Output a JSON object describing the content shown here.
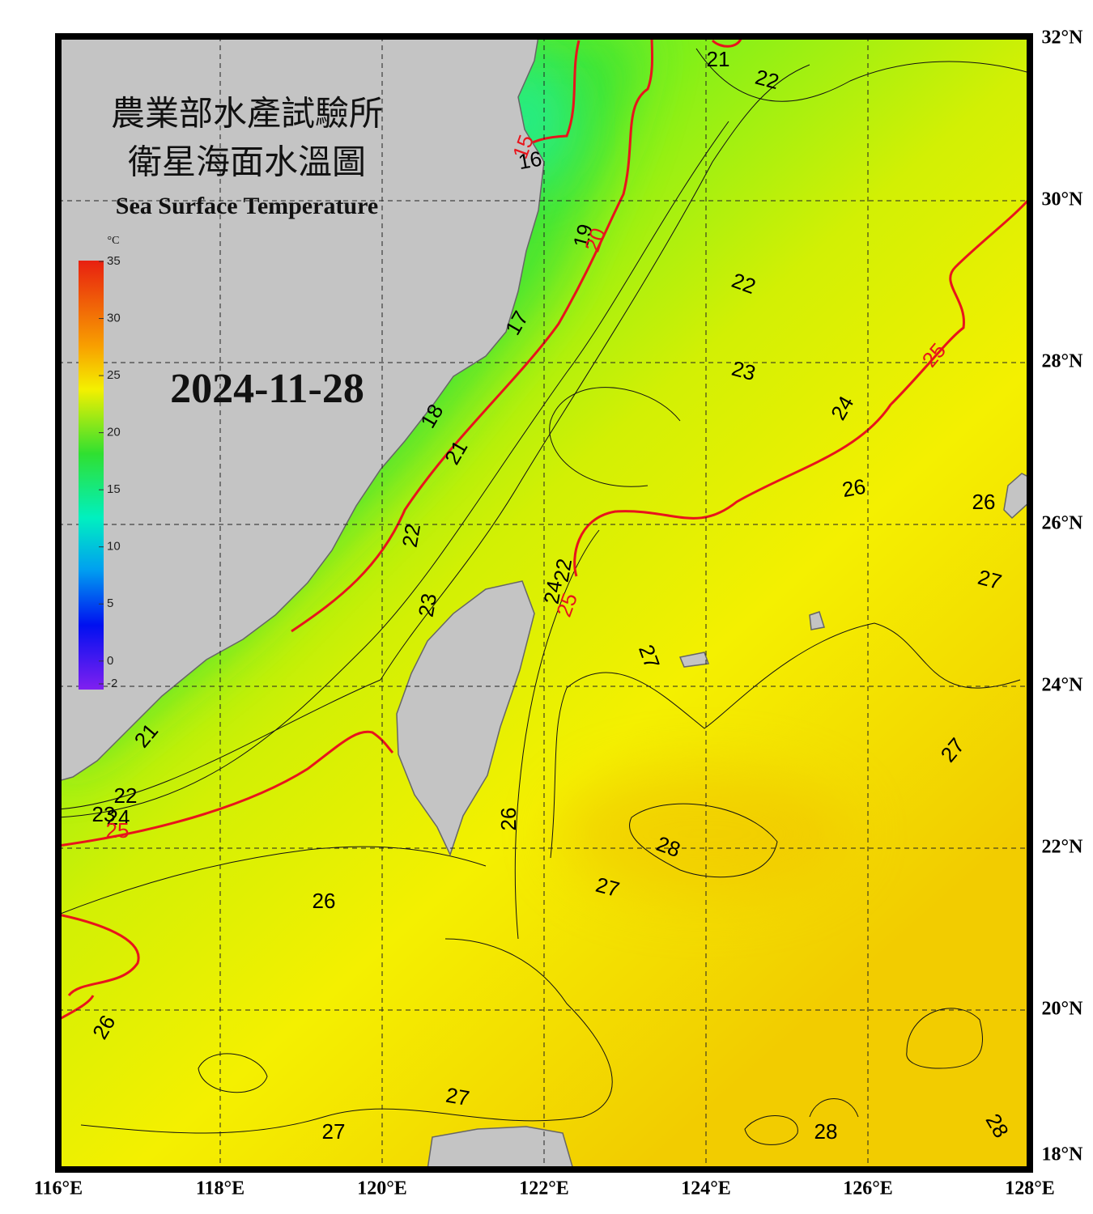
{
  "header": {
    "title_line1": "農業部水產試驗所",
    "title_line2": "衛星海面水溫圖",
    "subtitle": "Sea Surface Temperature",
    "date": "2024-11-28"
  },
  "colorbar": {
    "unit": "°C",
    "ticks": [
      35,
      30,
      25,
      20,
      15,
      10,
      5,
      0,
      -2
    ],
    "range": [
      -2,
      35
    ]
  },
  "map": {
    "xlim": [
      116,
      128
    ],
    "ylim": [
      18,
      32
    ],
    "xticks": [
      {
        "value": 116,
        "label": "116°E"
      },
      {
        "value": 118,
        "label": "118°E"
      },
      {
        "value": 120,
        "label": "120°E"
      },
      {
        "value": 122,
        "label": "122°E"
      },
      {
        "value": 124,
        "label": "124°E"
      },
      {
        "value": 126,
        "label": "126°E"
      },
      {
        "value": 128,
        "label": "128°E"
      }
    ],
    "yticks": [
      {
        "value": 18,
        "label": "18°N"
      },
      {
        "value": 20,
        "label": "20°N"
      },
      {
        "value": 22,
        "label": "22°N"
      },
      {
        "value": 24,
        "label": "24°N"
      },
      {
        "value": 26,
        "label": "26°N"
      },
      {
        "value": 28,
        "label": "28°N"
      },
      {
        "value": 30,
        "label": "30°N"
      },
      {
        "value": 32,
        "label": "32°N"
      }
    ],
    "grid": true,
    "contour_labels": [
      {
        "text": "21",
        "color": "#000000"
      },
      {
        "text": "22",
        "color": "#000000"
      },
      {
        "text": "15",
        "color": "#e8141c"
      },
      {
        "text": "16",
        "color": "#000000"
      },
      {
        "text": "19",
        "color": "#000000"
      },
      {
        "text": "20",
        "color": "#e8141c"
      },
      {
        "text": "22",
        "color": "#000000"
      },
      {
        "text": "17",
        "color": "#000000"
      },
      {
        "text": "23",
        "color": "#000000"
      },
      {
        "text": "25",
        "color": "#e8141c"
      },
      {
        "text": "24",
        "color": "#000000"
      },
      {
        "text": "18",
        "color": "#000000"
      },
      {
        "text": "21",
        "color": "#000000"
      },
      {
        "text": "26",
        "color": "#000000"
      },
      {
        "text": "26",
        "color": "#000000"
      },
      {
        "text": "22",
        "color": "#000000"
      },
      {
        "text": "27",
        "color": "#000000"
      },
      {
        "text": "23",
        "color": "#000000"
      },
      {
        "text": "22",
        "color": "#000000"
      },
      {
        "text": "24",
        "color": "#000000"
      },
      {
        "text": "25",
        "color": "#e8141c"
      },
      {
        "text": "27",
        "color": "#000000"
      },
      {
        "text": "21",
        "color": "#000000"
      },
      {
        "text": "27",
        "color": "#000000"
      },
      {
        "text": "22",
        "color": "#000000"
      },
      {
        "text": "23",
        "color": "#000000"
      },
      {
        "text": "24",
        "color": "#000000"
      },
      {
        "text": "25",
        "color": "#e8141c"
      },
      {
        "text": "26",
        "color": "#000000"
      },
      {
        "text": "28",
        "color": "#000000"
      },
      {
        "text": "27",
        "color": "#000000"
      },
      {
        "text": "26",
        "color": "#000000"
      },
      {
        "text": "26",
        "color": "#000000"
      },
      {
        "text": "27",
        "color": "#000000"
      },
      {
        "text": "27",
        "color": "#000000"
      },
      {
        "text": "28",
        "color": "#000000"
      },
      {
        "text": "28",
        "color": "#000000"
      }
    ]
  }
}
